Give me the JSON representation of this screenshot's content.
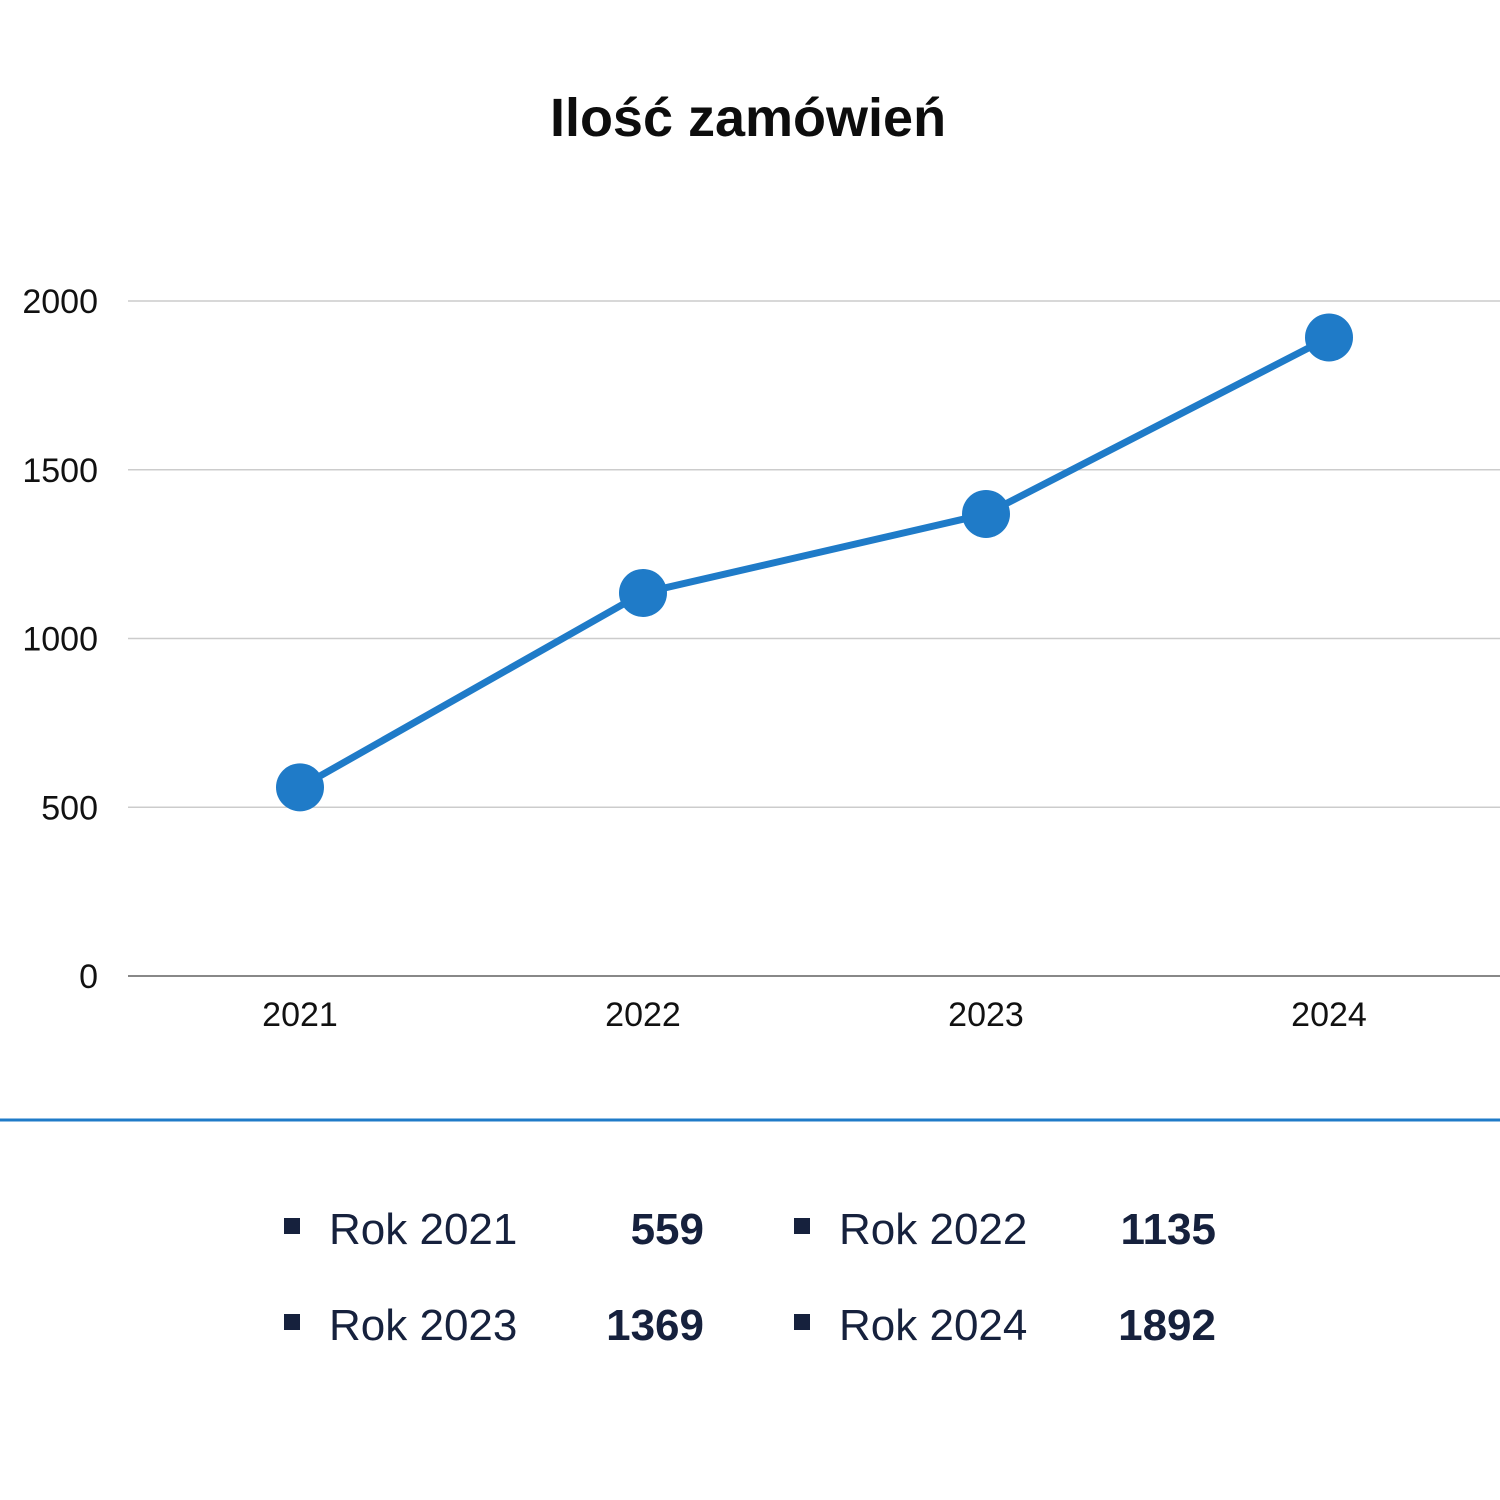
{
  "colors": {
    "line": "#1f7bc8",
    "grid": "#cccccc",
    "baseline": "#888888",
    "divider": "#1f7bc8",
    "legend_text": "#16213d",
    "legend_marker": "#16213d"
  },
  "chart_data": {
    "type": "line",
    "title": "Ilość zamówień",
    "xlabel": "",
    "ylabel": "",
    "categories": [
      "2021",
      "2022",
      "2023",
      "2024"
    ],
    "series": [
      {
        "values": [
          559,
          1135,
          1369,
          1892
        ]
      }
    ],
    "ylim": [
      0,
      2000
    ],
    "yticks": [
      0,
      500,
      1000,
      1500,
      2000
    ],
    "grid": true
  },
  "legend": {
    "items": [
      {
        "label": "Rok 2021",
        "value": "559"
      },
      {
        "label": "Rok 2022",
        "value": "1135"
      },
      {
        "label": "Rok 2023",
        "value": "1369"
      },
      {
        "label": "Rok 2024",
        "value": "1892"
      }
    ]
  }
}
